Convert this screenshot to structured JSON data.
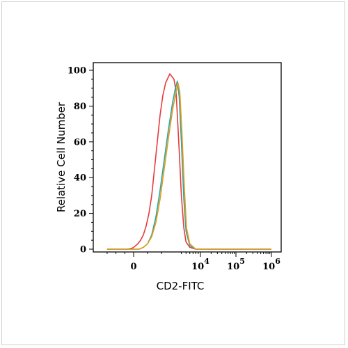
{
  "chart_data": {
    "type": "line",
    "title": "",
    "xlabel": "CD2-FITC",
    "ylabel": "Relative Cell Number",
    "x_scale": "biexponential",
    "xlim": [
      -3000,
      1000000
    ],
    "ylim": [
      0,
      100
    ],
    "y_ticks": [
      0,
      20,
      40,
      60,
      80,
      100
    ],
    "x_ticks": [
      {
        "value": 0,
        "base": "0",
        "exp": ""
      },
      {
        "value": 10000,
        "base": "10",
        "exp": "4"
      },
      {
        "value": 100000,
        "base": "10",
        "exp": "5"
      },
      {
        "value": 1000000,
        "base": "10",
        "exp": "6"
      }
    ],
    "grid": false,
    "legend": "none",
    "series": [
      {
        "color": "#e83a3a",
        "x": [
          -3000,
          -1500,
          -700,
          -200,
          0,
          150,
          300,
          500,
          700,
          900,
          1100,
          1300,
          1500,
          1700,
          1900,
          2100,
          2300,
          2600,
          2900,
          3100,
          3300,
          3600,
          4000,
          4500,
          5000,
          6000,
          8000,
          12000,
          100000,
          1000000
        ],
        "y": [
          0,
          0,
          0,
          0.5,
          1,
          2,
          3,
          5,
          8,
          13,
          20,
          30,
          45,
          60,
          75,
          86,
          93,
          98,
          95,
          88,
          75,
          55,
          30,
          12,
          4,
          1,
          0,
          0,
          0,
          0
        ]
      },
      {
        "color": "#2aa7a7",
        "x": [
          -3000,
          0,
          400,
          700,
          1000,
          1300,
          1600,
          1900,
          2200,
          2500,
          2800,
          3000,
          3300,
          3600,
          4000,
          4500,
          5000,
          6000,
          8000,
          100000,
          1000000
        ],
        "y": [
          0,
          0,
          0,
          1,
          3,
          8,
          18,
          33,
          50,
          67,
          82,
          90,
          94,
          85,
          60,
          28,
          10,
          2,
          0,
          0,
          0
        ]
      },
      {
        "color": "#e89a1a",
        "x": [
          -3000,
          0,
          400,
          700,
          1000,
          1300,
          1600,
          1900,
          2200,
          2500,
          2800,
          3100,
          3400,
          3700,
          4100,
          4600,
          5100,
          6000,
          8000,
          100000,
          1000000
        ],
        "y": [
          0,
          0,
          0,
          1,
          3,
          7,
          15,
          28,
          45,
          62,
          78,
          88,
          93,
          88,
          66,
          35,
          12,
          3,
          0,
          0,
          0
        ]
      }
    ]
  }
}
